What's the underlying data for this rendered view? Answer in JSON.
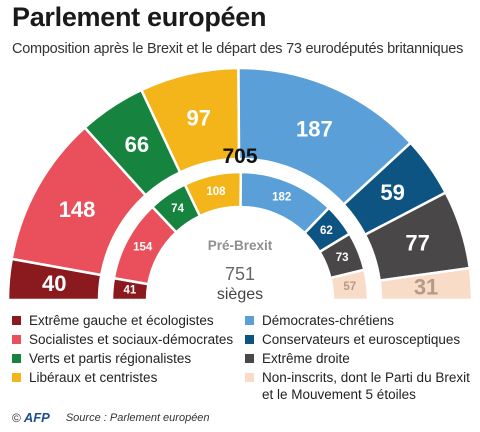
{
  "title": "Parlement européen",
  "subtitle": "Composition après le Brexit et le départ des 73 eurodéputés britanniques",
  "chart_data": {
    "type": "parliament-hemicycle",
    "center": {
      "total": "705"
    },
    "inner": {
      "label": "Pré-Brexit",
      "total": "751",
      "unit": "sièges"
    },
    "groups": [
      {
        "name": "Extrême gauche et écologistes",
        "color": "#8b1a1f",
        "outer": 40,
        "inner": 41
      },
      {
        "name": "Socialistes et sociaux-démocrates",
        "color": "#e9505b",
        "outer": 148,
        "inner": 154
      },
      {
        "name": "Verts et partis régionalistes",
        "color": "#16843e",
        "outer": 66,
        "inner": 74
      },
      {
        "name": "Libéraux et centristes",
        "color": "#f4b51b",
        "outer": 97,
        "inner": 108
      },
      {
        "name": "Démocrates-chrétiens",
        "color": "#5a9fd8",
        "outer": 187,
        "inner": 182
      },
      {
        "name": "Conservateurs et eurosceptiques",
        "color": "#0e5483",
        "outer": 59,
        "inner": 62
      },
      {
        "name": "Extrême droite",
        "color": "#4a4748",
        "outer": 77,
        "inner": 73
      },
      {
        "name": "Non-inscrits, dont le Parti du Brexit\net le Mouvement 5 étoiles",
        "color": "#f9dcc8",
        "outer": 31,
        "inner": 57
      }
    ]
  },
  "footer": {
    "copyright": "©",
    "agency": "AFP",
    "source": "Source : Parlement européen"
  }
}
